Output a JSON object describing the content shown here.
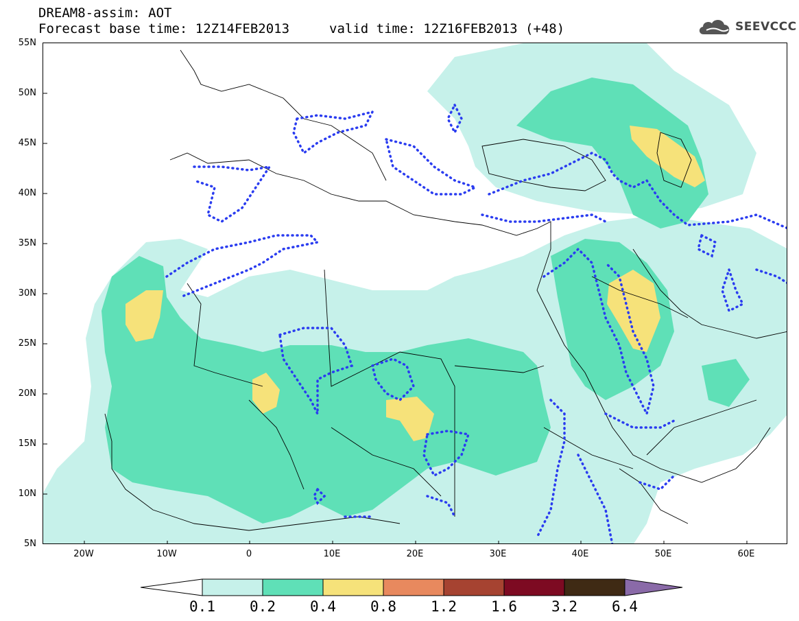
{
  "title": {
    "line1": "DREAM8-assim: AOT",
    "base_time": "Forecast base time: 12Z14FEB2013",
    "valid_time": "valid time: 12Z16FEB2013 (+48)"
  },
  "logo": {
    "text": "SEEVCCC",
    "icon": "cloud-icon"
  },
  "map": {
    "lon_range": [
      -25,
      65
    ],
    "lat_range": [
      5,
      55
    ],
    "lat_labels": [
      "55N",
      "50N",
      "45N",
      "40N",
      "35N",
      "30N",
      "25N",
      "20N",
      "15N",
      "10N",
      "5N"
    ],
    "lon_labels": [
      "20W",
      "10W",
      "0",
      "10E",
      "20E",
      "30E",
      "40E",
      "50E",
      "60E"
    ]
  },
  "legend": {
    "levels": [
      "0.1",
      "0.2",
      "0.4",
      "0.8",
      "1.2",
      "1.6",
      "3.2",
      "6.4"
    ],
    "colors": [
      "#ffffff",
      "#c6f1ea",
      "#5fe0b7",
      "#f6e27a",
      "#e8895e",
      "#a64331",
      "#7d0a22",
      "#3f2a14",
      "#8a6aa8"
    ]
  }
}
